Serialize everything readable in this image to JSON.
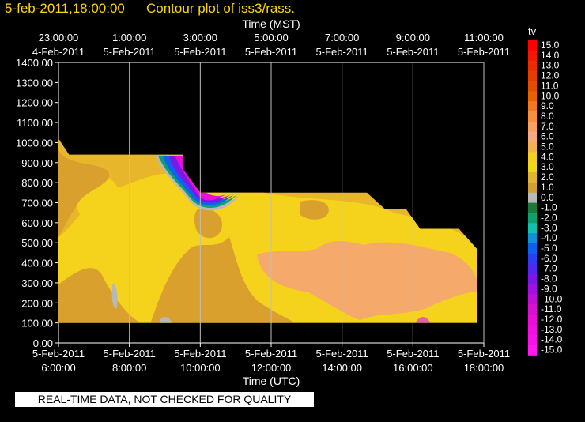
{
  "header": {
    "date_label": "5-feb-2011,18:00:00",
    "title": "Contour plot of iss3/rass."
  },
  "footer": {
    "note": "REAL-TIME DATA, NOT CHECKED FOR QUALITY"
  },
  "colors": {
    "background": "#000000",
    "title": "#ffd400",
    "gridline": "#bfbfbf",
    "fill_dark_orange": "#d9a02e",
    "fill_mid_orange": "#e8b62a",
    "fill_yellow": "#f5d31c",
    "fill_peach": "#f5a96a"
  },
  "chart_data": {
    "type": "heatmap",
    "title": "Contour plot of iss3/rass.",
    "x_axis_bottom": {
      "label": "Time (UTC)",
      "ticks": [
        {
          "date": "5-Feb-2011",
          "time": "6:00:00"
        },
        {
          "date": "5-Feb-2011",
          "time": "8:00:00"
        },
        {
          "date": "5-Feb-2011",
          "time": "10:00:00"
        },
        {
          "date": "5-Feb-2011",
          "time": "12:00:00"
        },
        {
          "date": "5-Feb-2011",
          "time": "14:00:00"
        },
        {
          "date": "5-Feb-2011",
          "time": "16:00:00"
        },
        {
          "date": "5-Feb-2011",
          "time": "18:00:00"
        }
      ],
      "range_utc_hours": [
        6,
        18
      ]
    },
    "x_axis_top": {
      "label": "Time (MST)",
      "ticks": [
        {
          "time": "23:00:00",
          "date": "4-Feb-2011"
        },
        {
          "time": "1:00:00",
          "date": "5-Feb-2011"
        },
        {
          "time": "3:00:00",
          "date": "5-Feb-2011"
        },
        {
          "time": "5:00:00",
          "date": "5-Feb-2011"
        },
        {
          "time": "7:00:00",
          "date": "5-Feb-2011"
        },
        {
          "time": "9:00:00",
          "date": "5-Feb-2011"
        },
        {
          "time": "11:00:00",
          "date": "5-Feb-2011"
        }
      ]
    },
    "y_axis": {
      "label": "",
      "ylim": [
        0,
        1400
      ],
      "ticks": [
        "0.00",
        "100.00",
        "200.00",
        "300.00",
        "400.00",
        "500.00",
        "600.00",
        "700.00",
        "800.00",
        "900.00",
        "1000.00",
        "1100.00",
        "1200.00",
        "1300.00",
        "1400.00"
      ]
    },
    "grid": "vertical lines at each time tick",
    "colorbar": {
      "label": "tv",
      "levels": [
        {
          "value": "15.0",
          "color": "#ff0000"
        },
        {
          "value": "14.0",
          "color": "#f21800"
        },
        {
          "value": "13.0",
          "color": "#eb2c00"
        },
        {
          "value": "12.0",
          "color": "#e33d00"
        },
        {
          "value": "11.0",
          "color": "#e04e00"
        },
        {
          "value": "10.0",
          "color": "#e66400"
        },
        {
          "value": "9.0",
          "color": "#f07a20"
        },
        {
          "value": "8.0",
          "color": "#f5903c"
        },
        {
          "value": "7.0",
          "color": "#f7a060"
        },
        {
          "value": "6.0",
          "color": "#f5aa80"
        },
        {
          "value": "5.0",
          "color": "#f5b050"
        },
        {
          "value": "4.0",
          "color": "#f5d020"
        },
        {
          "value": "3.0",
          "color": "#f0d818"
        },
        {
          "value": "2.0",
          "color": "#e3b430"
        },
        {
          "value": "1.0",
          "color": "#d0a032"
        },
        {
          "value": "0.0",
          "color": "#b8b8b8"
        },
        {
          "value": "-1.0",
          "color": "#1a7a3a"
        },
        {
          "value": "-2.0",
          "color": "#10a070"
        },
        {
          "value": "-3.0",
          "color": "#10c0b0"
        },
        {
          "value": "-4.0",
          "color": "#1090d8"
        },
        {
          "value": "-5.0",
          "color": "#1060f0"
        },
        {
          "value": "-6.0",
          "color": "#2a40f0"
        },
        {
          "value": "-7.0",
          "color": "#5028f0"
        },
        {
          "value": "-8.0",
          "color": "#7a18e8"
        },
        {
          "value": "-9.0",
          "color": "#a010e0"
        },
        {
          "value": "-10.0",
          "color": "#c010d8"
        },
        {
          "value": "-11.0",
          "color": "#d810d0"
        },
        {
          "value": "-12.0",
          "color": "#e810d8"
        },
        {
          "value": "-13.0",
          "color": "#f010e0"
        },
        {
          "value": "-14.0",
          "color": "#f812e8"
        },
        {
          "value": "-15.0",
          "color": "#ff18f0"
        }
      ]
    },
    "data_top_profile": [
      {
        "utc_hour": 6.0,
        "top_m": 1020
      },
      {
        "utc_hour": 6.3,
        "top_m": 940
      },
      {
        "utc_hour": 9.5,
        "top_m": 940
      },
      {
        "utc_hour": 9.5,
        "top_m": 870
      },
      {
        "utc_hour": 10.0,
        "top_m": 750
      },
      {
        "utc_hour": 14.7,
        "top_m": 750
      },
      {
        "utc_hour": 15.2,
        "top_m": 670
      },
      {
        "utc_hour": 15.8,
        "top_m": 670
      },
      {
        "utc_hour": 16.2,
        "top_m": 570
      },
      {
        "utc_hour": 17.3,
        "top_m": 570
      },
      {
        "utc_hour": 17.8,
        "top_m": 470
      }
    ],
    "data_bottom_m": 100,
    "data_extent_utc_hours": [
      6,
      17.8
    ],
    "regions": [
      {
        "desc": "upper-left",
        "value_range": "1.0 to 2.0"
      },
      {
        "desc": "main body",
        "value_range": "3.0 to 4.0"
      },
      {
        "desc": "right-center",
        "value_range": "5.0 to 6.0"
      },
      {
        "desc": "near 10:00 UTC at 700-900 m",
        "value_range": "-14.0 to 0.0"
      }
    ]
  }
}
